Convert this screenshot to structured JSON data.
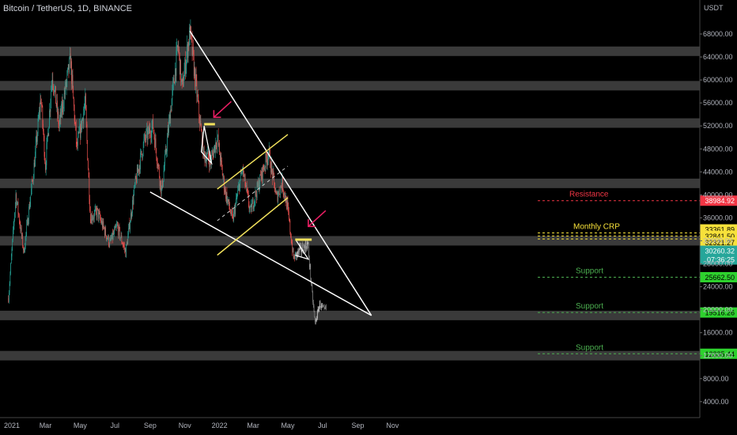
{
  "header": {
    "title": "Bitcoin / TetherUS, 1D, BINANCE",
    "currency": "USDT"
  },
  "countdown": "07:36:25",
  "colors": {
    "background": "#000000",
    "zone": "#3a3a3a",
    "trendline": "#ffffff",
    "channel": "#f2e25c",
    "resistance": "#f23645",
    "support": "#4caf50",
    "support_label_bg": "#2ed12e",
    "crp_label_bg": "#f7e13a",
    "price_label_bg": "#26a69a",
    "candle_up": "#26a69a",
    "candle_down": "#ef5350",
    "arrow": "#e91e63"
  },
  "chart_data": {
    "type": "candlestick",
    "symbol": "Bitcoin / TetherUS, 1D, BINANCE",
    "y_unit": "USDT",
    "y_axis_ticks": [
      "68000.00",
      "64000.00",
      "60000.00",
      "56000.00",
      "52000.00",
      "48000.00",
      "44000.00",
      "40000.00",
      "36000.00",
      "32000.00",
      "28000.00",
      "24000.00",
      "20000.00",
      "16000.00",
      "12000.00",
      "8000.00",
      "4000.00"
    ],
    "x_axis_ticks": [
      "2021",
      "Mar",
      "May",
      "Jul",
      "Sep",
      "Nov",
      "2022",
      "Mar",
      "May",
      "Jul",
      "Sep",
      "Nov"
    ],
    "price_path": [
      [
        "2020-12-26",
        22000
      ],
      [
        "2021-01-08",
        40000
      ],
      [
        "2021-01-22",
        30000
      ],
      [
        "2021-02-08",
        44000
      ],
      [
        "2021-02-21",
        57000
      ],
      [
        "2021-03-01",
        45000
      ],
      [
        "2021-03-13",
        61000
      ],
      [
        "2021-03-25",
        52000
      ],
      [
        "2021-04-14",
        63500
      ],
      [
        "2021-04-25",
        48000
      ],
      [
        "2021-05-10",
        56000
      ],
      [
        "2021-05-19",
        36000
      ],
      [
        "2021-05-31",
        37000
      ],
      [
        "2021-06-22",
        31500
      ],
      [
        "2021-07-05",
        34500
      ],
      [
        "2021-07-20",
        30000
      ],
      [
        "2021-08-06",
        42000
      ],
      [
        "2021-08-22",
        49500
      ],
      [
        "2021-09-06",
        52000
      ],
      [
        "2021-09-21",
        40500
      ],
      [
        "2021-10-06",
        54000
      ],
      [
        "2021-10-20",
        66000
      ],
      [
        "2021-10-27",
        58500
      ],
      [
        "2021-11-10",
        68500
      ],
      [
        "2021-11-26",
        54000
      ],
      [
        "2021-12-04",
        47000
      ],
      [
        "2021-12-17",
        46000
      ],
      [
        "2021-12-28",
        50000
      ],
      [
        "2022-01-10",
        41000
      ],
      [
        "2022-01-24",
        35500
      ],
      [
        "2022-02-10",
        44500
      ],
      [
        "2022-02-24",
        37000
      ],
      [
        "2022-03-28",
        47500
      ],
      [
        "2022-04-11",
        39500
      ],
      [
        "2022-04-21",
        42000
      ],
      [
        "2022-04-30",
        38000
      ],
      [
        "2022-05-11",
        29000
      ],
      [
        "2022-05-20",
        30000
      ],
      [
        "2022-06-05",
        31500
      ],
      [
        "2022-06-13",
        22500
      ],
      [
        "2022-06-18",
        17600
      ],
      [
        "2022-06-26",
        21000
      ],
      [
        "2022-07-04",
        19800
      ],
      [
        "2022-07-07",
        20200
      ]
    ],
    "horizontal_zones": [
      65000,
      59000,
      52500,
      42000,
      32000,
      19000,
      12000
    ],
    "levels": [
      {
        "label": "Resistance",
        "price": 38984.92,
        "price_label": "38984.92",
        "kind": "resistance"
      },
      {
        "label": "Monthly CRP",
        "prices_labels": [
          "33361.89",
          "32841.50",
          "32321.27"
        ],
        "prices": [
          33361.89,
          32841.5,
          32321.27
        ],
        "kind": "crp"
      },
      {
        "label": "Support",
        "price": 25662.5,
        "price_label": "25662.50",
        "kind": "support"
      },
      {
        "label": "Support",
        "price": 19516.26,
        "price_label": "19516.26",
        "kind": "support"
      },
      {
        "label": "Support",
        "price": 12335.44,
        "price_label": "12335.44",
        "kind": "support"
      }
    ],
    "current_price": 30260.32,
    "current_price_label": "30260.32",
    "trendlines": [
      {
        "kind": "wedge-upper",
        "from": [
          "2021-11-10",
          68500
        ],
        "to": [
          "2022-09-25",
          19000
        ]
      },
      {
        "kind": "wedge-lower",
        "from": [
          "2021-09-01",
          40500
        ],
        "to": [
          "2022-09-25",
          19000
        ]
      },
      {
        "kind": "channel-upper",
        "from": [
          "2021-12-28",
          41000
        ],
        "to": [
          "2022-05-01",
          50500
        ]
      },
      {
        "kind": "channel-lower",
        "from": [
          "2021-12-28",
          29500
        ],
        "to": [
          "2022-05-01",
          39500
        ]
      },
      {
        "kind": "channel-mid",
        "from": [
          "2021-12-28",
          35500
        ],
        "to": [
          "2022-05-01",
          45000
        ]
      }
    ],
    "annotations": [
      {
        "kind": "arrow",
        "at": [
          "2021-12-22",
          53500
        ]
      },
      {
        "kind": "arrow",
        "at": [
          "2022-06-06",
          34500
        ]
      }
    ]
  }
}
